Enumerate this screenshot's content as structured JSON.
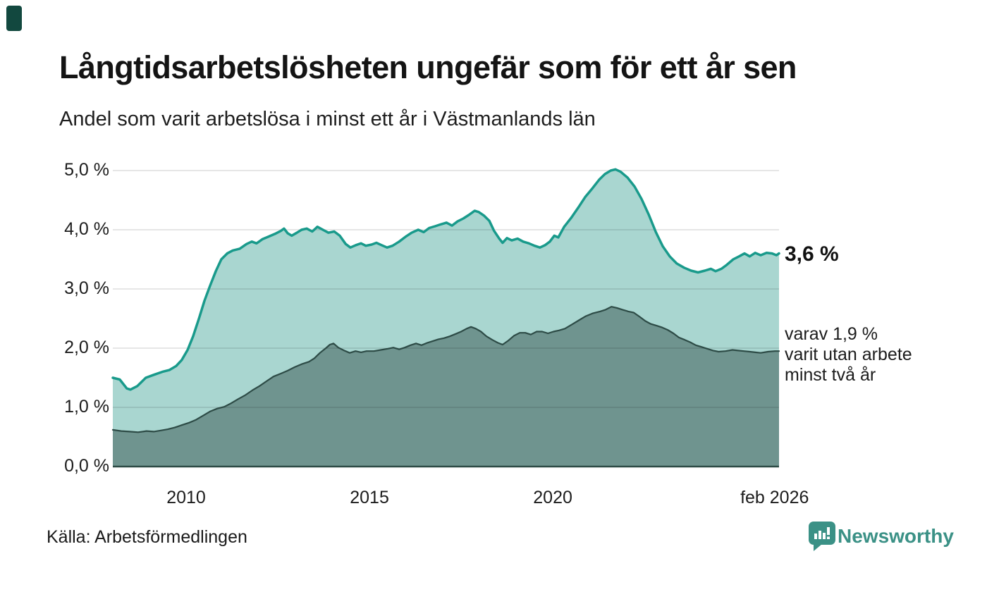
{
  "header": {
    "title": "Långtidsarbetslösheten ungefär som för ett år sen",
    "subtitle": "Andel som varit arbetslösa i minst ett år i Västmanlands län"
  },
  "chart_data": {
    "type": "area",
    "title": "Långtidsarbetslösheten ungefär som för ett år sen",
    "subtitle": "Andel som varit arbetslösa i minst ett år i Västmanlands län",
    "x_unit": "decimal_year",
    "x_range": [
      2008.0,
      2026.17
    ],
    "ylim": [
      0,
      5
    ],
    "grid": "horizontal",
    "legend_position": "none",
    "yticks": {
      "values": [
        0,
        1,
        2,
        3,
        4,
        5
      ],
      "labels": [
        "0,0 %",
        "1,0 %",
        "2,0 %",
        "3,0 %",
        "4,0 %",
        "5,0 %"
      ]
    },
    "xticks": {
      "values": [
        2010,
        2015,
        2020,
        2026.05
      ],
      "labels": [
        "2010",
        "2015",
        "2020",
        "feb 2026"
      ]
    },
    "gridline_color": "rgba(0,0,0,0.13)",
    "axis_line_color": "#2d4b46",
    "series": [
      {
        "id": "minst-ett-ar",
        "name": "Arbetslösa minst ett år",
        "line_color": "#199a8b",
        "fill_color": "#a9d6d0",
        "line_width": 3.5,
        "latest_label": "3,6 %",
        "x": [
          2008.0,
          2008.19,
          2008.38,
          2008.48,
          2008.67,
          2008.9,
          2009.12,
          2009.35,
          2009.54,
          2009.73,
          2009.88,
          2010.04,
          2010.19,
          2010.35,
          2010.5,
          2010.65,
          2010.81,
          2010.96,
          2011.12,
          2011.27,
          2011.46,
          2011.65,
          2011.79,
          2011.92,
          2012.08,
          2012.23,
          2012.42,
          2012.58,
          2012.67,
          2012.77,
          2012.88,
          2013.02,
          2013.15,
          2013.29,
          2013.44,
          2013.58,
          2013.73,
          2013.88,
          2014.04,
          2014.19,
          2014.35,
          2014.48,
          2014.63,
          2014.77,
          2014.9,
          2015.06,
          2015.19,
          2015.33,
          2015.48,
          2015.63,
          2015.81,
          2015.98,
          2016.15,
          2016.33,
          2016.48,
          2016.63,
          2016.79,
          2016.94,
          2017.1,
          2017.25,
          2017.4,
          2017.56,
          2017.71,
          2017.87,
          2017.98,
          2018.12,
          2018.27,
          2018.4,
          2018.54,
          2018.63,
          2018.75,
          2018.88,
          2019.04,
          2019.19,
          2019.35,
          2019.5,
          2019.65,
          2019.79,
          2019.92,
          2020.04,
          2020.15,
          2020.31,
          2020.5,
          2020.69,
          2020.88,
          2021.08,
          2021.27,
          2021.42,
          2021.58,
          2021.71,
          2021.85,
          2022.04,
          2022.23,
          2022.42,
          2022.62,
          2022.81,
          2023.0,
          2023.19,
          2023.38,
          2023.58,
          2023.77,
          2023.96,
          2024.15,
          2024.31,
          2024.44,
          2024.6,
          2024.75,
          2024.92,
          2025.08,
          2025.23,
          2025.37,
          2025.52,
          2025.67,
          2025.83,
          2025.98,
          2026.1,
          2026.17
        ],
        "values": [
          1.5,
          1.47,
          1.32,
          1.3,
          1.36,
          1.5,
          1.55,
          1.6,
          1.63,
          1.7,
          1.8,
          1.97,
          2.2,
          2.5,
          2.8,
          3.05,
          3.3,
          3.5,
          3.6,
          3.65,
          3.68,
          3.76,
          3.8,
          3.77,
          3.84,
          3.88,
          3.93,
          3.98,
          4.02,
          3.94,
          3.9,
          3.95,
          4.0,
          4.02,
          3.97,
          4.05,
          4.0,
          3.95,
          3.97,
          3.9,
          3.76,
          3.7,
          3.74,
          3.77,
          3.73,
          3.75,
          3.78,
          3.74,
          3.7,
          3.73,
          3.8,
          3.88,
          3.95,
          4.0,
          3.96,
          4.03,
          4.06,
          4.09,
          4.12,
          4.07,
          4.14,
          4.19,
          4.25,
          4.32,
          4.3,
          4.24,
          4.15,
          3.98,
          3.85,
          3.78,
          3.86,
          3.82,
          3.85,
          3.8,
          3.77,
          3.73,
          3.7,
          3.74,
          3.8,
          3.9,
          3.87,
          4.05,
          4.2,
          4.37,
          4.55,
          4.7,
          4.85,
          4.94,
          5.0,
          5.02,
          4.98,
          4.88,
          4.73,
          4.52,
          4.25,
          3.96,
          3.72,
          3.55,
          3.43,
          3.36,
          3.31,
          3.28,
          3.31,
          3.34,
          3.3,
          3.34,
          3.41,
          3.5,
          3.55,
          3.6,
          3.55,
          3.61,
          3.57,
          3.61,
          3.6,
          3.57,
          3.6
        ]
      },
      {
        "id": "minst-tva-ar",
        "name": "Arbetslösa minst två år",
        "line_color": "#2d4b46",
        "fill_color": "#6f948f",
        "line_width": 2.2,
        "latest_label": "1,9 %",
        "x": [
          2008.0,
          2008.23,
          2008.46,
          2008.69,
          2008.92,
          2009.12,
          2009.31,
          2009.5,
          2009.69,
          2009.88,
          2010.08,
          2010.27,
          2010.46,
          2010.65,
          2010.85,
          2011.04,
          2011.23,
          2011.42,
          2011.62,
          2011.81,
          2012.0,
          2012.19,
          2012.38,
          2012.58,
          2012.77,
          2012.96,
          2013.15,
          2013.35,
          2013.5,
          2013.65,
          2013.81,
          2013.92,
          2014.02,
          2014.15,
          2014.31,
          2014.46,
          2014.62,
          2014.77,
          2014.92,
          2015.12,
          2015.31,
          2015.5,
          2015.65,
          2015.81,
          2015.96,
          2016.12,
          2016.27,
          2016.42,
          2016.58,
          2016.73,
          2016.88,
          2017.04,
          2017.19,
          2017.35,
          2017.5,
          2017.65,
          2017.77,
          2017.9,
          2018.04,
          2018.19,
          2018.35,
          2018.5,
          2018.63,
          2018.79,
          2018.94,
          2019.1,
          2019.25,
          2019.4,
          2019.56,
          2019.71,
          2019.87,
          2020.02,
          2020.17,
          2020.33,
          2020.52,
          2020.71,
          2020.9,
          2021.1,
          2021.29,
          2021.44,
          2021.6,
          2021.75,
          2021.9,
          2022.06,
          2022.21,
          2022.37,
          2022.52,
          2022.67,
          2022.83,
          2022.98,
          2023.13,
          2023.29,
          2023.44,
          2023.6,
          2023.75,
          2023.9,
          2024.06,
          2024.21,
          2024.37,
          2024.52,
          2024.71,
          2024.9,
          2025.06,
          2025.21,
          2025.37,
          2025.52,
          2025.67,
          2025.87,
          2026.06,
          2026.17
        ],
        "values": [
          0.62,
          0.6,
          0.59,
          0.58,
          0.6,
          0.59,
          0.61,
          0.63,
          0.66,
          0.7,
          0.74,
          0.79,
          0.86,
          0.93,
          0.98,
          1.01,
          1.07,
          1.14,
          1.21,
          1.29,
          1.36,
          1.44,
          1.52,
          1.57,
          1.62,
          1.68,
          1.73,
          1.77,
          1.83,
          1.92,
          2.0,
          2.06,
          2.08,
          2.01,
          1.96,
          1.92,
          1.95,
          1.93,
          1.95,
          1.95,
          1.97,
          1.99,
          2.01,
          1.98,
          2.01,
          2.05,
          2.08,
          2.05,
          2.09,
          2.12,
          2.15,
          2.17,
          2.2,
          2.24,
          2.28,
          2.33,
          2.36,
          2.33,
          2.28,
          2.2,
          2.14,
          2.09,
          2.06,
          2.13,
          2.21,
          2.26,
          2.26,
          2.23,
          2.28,
          2.28,
          2.25,
          2.28,
          2.3,
          2.33,
          2.4,
          2.47,
          2.54,
          2.59,
          2.62,
          2.65,
          2.7,
          2.68,
          2.65,
          2.62,
          2.6,
          2.53,
          2.46,
          2.41,
          2.38,
          2.35,
          2.31,
          2.25,
          2.18,
          2.14,
          2.1,
          2.05,
          2.02,
          1.99,
          1.96,
          1.94,
          1.95,
          1.97,
          1.96,
          1.95,
          1.94,
          1.93,
          1.92,
          1.94,
          1.95,
          1.95
        ]
      }
    ],
    "annotations": {
      "latest_total": "3,6 %",
      "detail_lines": [
        "varav 1,9 %",
        "varit utan arbete",
        "minst två år"
      ]
    }
  },
  "source": {
    "text": "Källa: Arbetsförmedlingen"
  },
  "branding": {
    "name": "Newsworthy",
    "color": "#3b9186",
    "icon": "newsworthy-speech-bubble-bar-chart-icon"
  }
}
